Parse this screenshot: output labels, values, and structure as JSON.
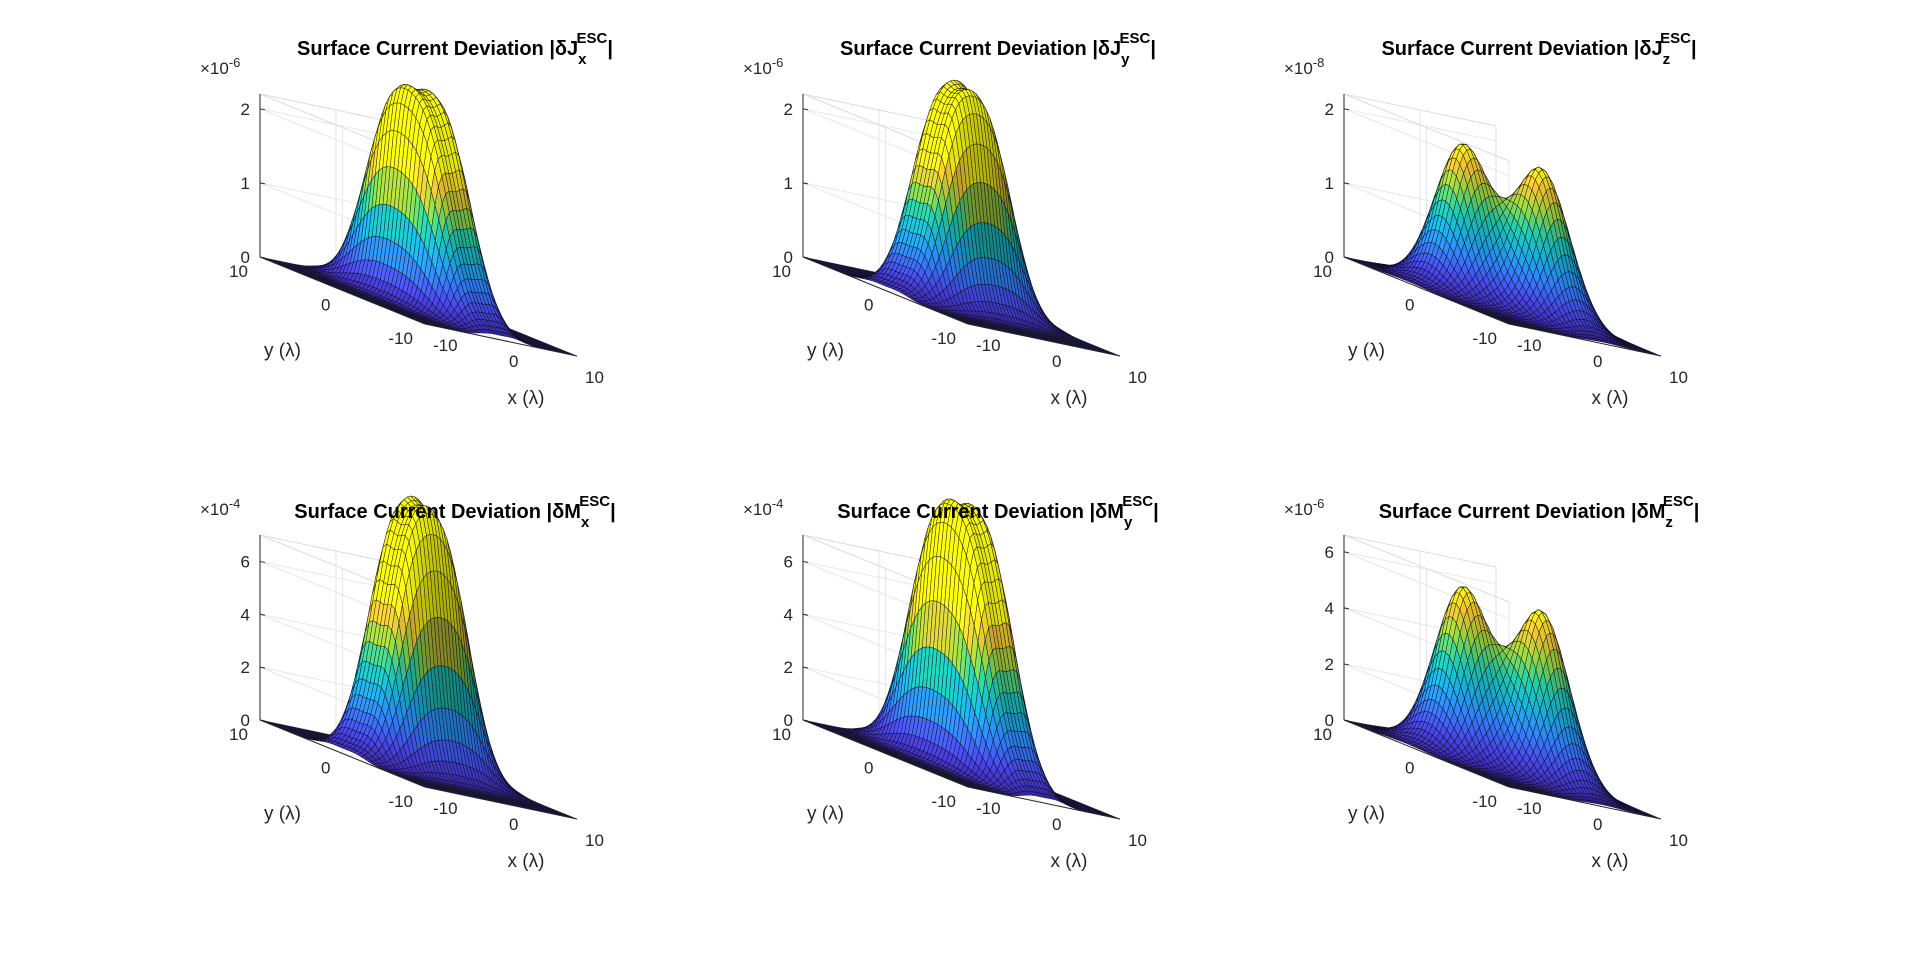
{
  "figure": {
    "background": "#ffffff",
    "colormap": "parula",
    "colormap_stops": [
      "#3e26a8",
      "#4748e8",
      "#2f80fa",
      "#18a8d0",
      "#1fc19e",
      "#8ccb3a",
      "#e8b830",
      "#f9fb0e"
    ],
    "floor_color": "#2a2262",
    "mesh_color": "#000000"
  },
  "chart_data": [
    {
      "type": "surface",
      "title_main": "Surface Current Deviation |δJ",
      "title_sub": "x",
      "title_sup": "ESC",
      "title_end": "|",
      "exponent_base": "×10",
      "exponent_power": "-6",
      "zlim": [
        0,
        2.2
      ],
      "z_ticks": [
        "0",
        "1",
        "2"
      ],
      "x_ticks": [
        "-10",
        "0",
        "10"
      ],
      "y_ticks": [
        "-10",
        "0",
        "10"
      ],
      "xlabel": "x (λ)",
      "ylabel": "y (λ)",
      "xlim": [
        -10,
        10
      ],
      "ylim": [
        -10,
        10
      ],
      "peaks": [
        {
          "x": -1.5,
          "y": 2.5,
          "amp": 2.0,
          "sx": 1.4,
          "sy": 2.8
        },
        {
          "x": 1.5,
          "y": -2.5,
          "amp": 2.0,
          "sx": 1.4,
          "sy": 2.8
        },
        {
          "x": -1.5,
          "y": -2.5,
          "amp": 1.85,
          "sx": 1.4,
          "sy": 2.8
        },
        {
          "x": 1.5,
          "y": 2.5,
          "amp": 1.85,
          "sx": 1.4,
          "sy": 2.8
        }
      ]
    },
    {
      "type": "surface",
      "title_main": "Surface Current Deviation |δJ",
      "title_sub": "y",
      "title_sup": "ESC",
      "title_end": "|",
      "exponent_base": "×10",
      "exponent_power": "-6",
      "zlim": [
        0,
        2.2
      ],
      "z_ticks": [
        "0",
        "1",
        "2"
      ],
      "x_ticks": [
        "-10",
        "0",
        "10"
      ],
      "y_ticks": [
        "-10",
        "0",
        "10"
      ],
      "xlabel": "x (λ)",
      "ylabel": "y (λ)",
      "xlim": [
        -10,
        10
      ],
      "ylim": [
        -10,
        10
      ],
      "peaks": [
        {
          "x": 2.5,
          "y": 1.5,
          "amp": 2.05,
          "sx": 2.8,
          "sy": 1.4
        },
        {
          "x": -2.5,
          "y": -1.5,
          "amp": 1.95,
          "sx": 2.8,
          "sy": 1.4
        },
        {
          "x": 2.5,
          "y": -1.5,
          "amp": 1.9,
          "sx": 2.8,
          "sy": 1.4
        },
        {
          "x": -2.5,
          "y": 1.5,
          "amp": 1.9,
          "sx": 2.8,
          "sy": 1.4
        }
      ]
    },
    {
      "type": "surface",
      "title_main": "Surface Current Deviation |δJ",
      "title_sub": "z",
      "title_sup": "ESC",
      "title_end": "|",
      "exponent_base": "×10",
      "exponent_power": "-8",
      "zlim": [
        0,
        2.2
      ],
      "z_ticks": [
        "0",
        "1",
        "2"
      ],
      "x_ticks": [
        "-10",
        "0",
        "10"
      ],
      "y_ticks": [
        "-10",
        "0",
        "10"
      ],
      "xlabel": "x (λ)",
      "ylabel": "y (λ)",
      "xlim": [
        -10,
        10
      ],
      "ylim": [
        -10,
        10
      ],
      "peaks": [
        {
          "x": -2.5,
          "y": 2.5,
          "amp": 2.0,
          "sx": 2.5,
          "sy": 2.5
        },
        {
          "x": 2.5,
          "y": -2.5,
          "amp": 2.0,
          "sx": 2.5,
          "sy": 2.5
        }
      ]
    },
    {
      "type": "surface",
      "title_main": "Surface Current Deviation |δM",
      "title_sub": "x",
      "title_sup": "ESC",
      "title_end": "|",
      "exponent_base": "×10",
      "exponent_power": "-4",
      "zlim": [
        0,
        7
      ],
      "z_ticks": [
        "0",
        "2",
        "4",
        "6"
      ],
      "x_ticks": [
        "-10",
        "0",
        "10"
      ],
      "y_ticks": [
        "-10",
        "0",
        "10"
      ],
      "xlabel": "x (λ)",
      "ylabel": "y (λ)",
      "xlim": [
        -10,
        10
      ],
      "ylim": [
        -10,
        10
      ],
      "peaks": [
        {
          "x": 2.5,
          "y": 1.5,
          "amp": 6.9,
          "sx": 2.8,
          "sy": 1.4
        },
        {
          "x": -2.5,
          "y": -1.5,
          "amp": 6.6,
          "sx": 2.8,
          "sy": 1.4
        },
        {
          "x": 2.5,
          "y": -1.5,
          "amp": 6.5,
          "sx": 2.8,
          "sy": 1.4
        },
        {
          "x": -2.5,
          "y": 1.5,
          "amp": 6.5,
          "sx": 2.8,
          "sy": 1.4
        }
      ]
    },
    {
      "type": "surface",
      "title_main": "Surface Current Deviation |δM",
      "title_sub": "y",
      "title_sup": "ESC",
      "title_end": "|",
      "exponent_base": "×10",
      "exponent_power": "-4",
      "zlim": [
        0,
        7
      ],
      "z_ticks": [
        "0",
        "2",
        "4",
        "6"
      ],
      "x_ticks": [
        "-10",
        "0",
        "10"
      ],
      "y_ticks": [
        "-10",
        "0",
        "10"
      ],
      "xlabel": "x (λ)",
      "ylabel": "y (λ)",
      "xlim": [
        -10,
        10
      ],
      "ylim": [
        -10,
        10
      ],
      "peaks": [
        {
          "x": -1.5,
          "y": 2.5,
          "amp": 6.8,
          "sx": 1.4,
          "sy": 2.8
        },
        {
          "x": 1.5,
          "y": -2.5,
          "amp": 6.8,
          "sx": 1.4,
          "sy": 2.8
        },
        {
          "x": -1.5,
          "y": -2.5,
          "amp": 6.4,
          "sx": 1.4,
          "sy": 2.8
        },
        {
          "x": 1.5,
          "y": 2.5,
          "amp": 6.4,
          "sx": 1.4,
          "sy": 2.8
        }
      ]
    },
    {
      "type": "surface",
      "title_main": "Surface Current Deviation |δM",
      "title_sub": "z",
      "title_sup": "ESC",
      "title_end": "|",
      "exponent_base": "×10",
      "exponent_power": "-6",
      "zlim": [
        0,
        6.6
      ],
      "z_ticks": [
        "0",
        "2",
        "4",
        "6"
      ],
      "x_ticks": [
        "-10",
        "0",
        "10"
      ],
      "y_ticks": [
        "-10",
        "0",
        "10"
      ],
      "xlabel": "x (λ)",
      "ylabel": "y (λ)",
      "xlim": [
        -10,
        10
      ],
      "ylim": [
        -10,
        10
      ],
      "peaks": [
        {
          "x": -2.5,
          "y": 2.5,
          "amp": 6.0,
          "sx": 2.5,
          "sy": 2.5
        },
        {
          "x": 2.5,
          "y": -2.5,
          "amp": 6.0,
          "sx": 2.5,
          "sy": 2.5
        }
      ]
    }
  ]
}
